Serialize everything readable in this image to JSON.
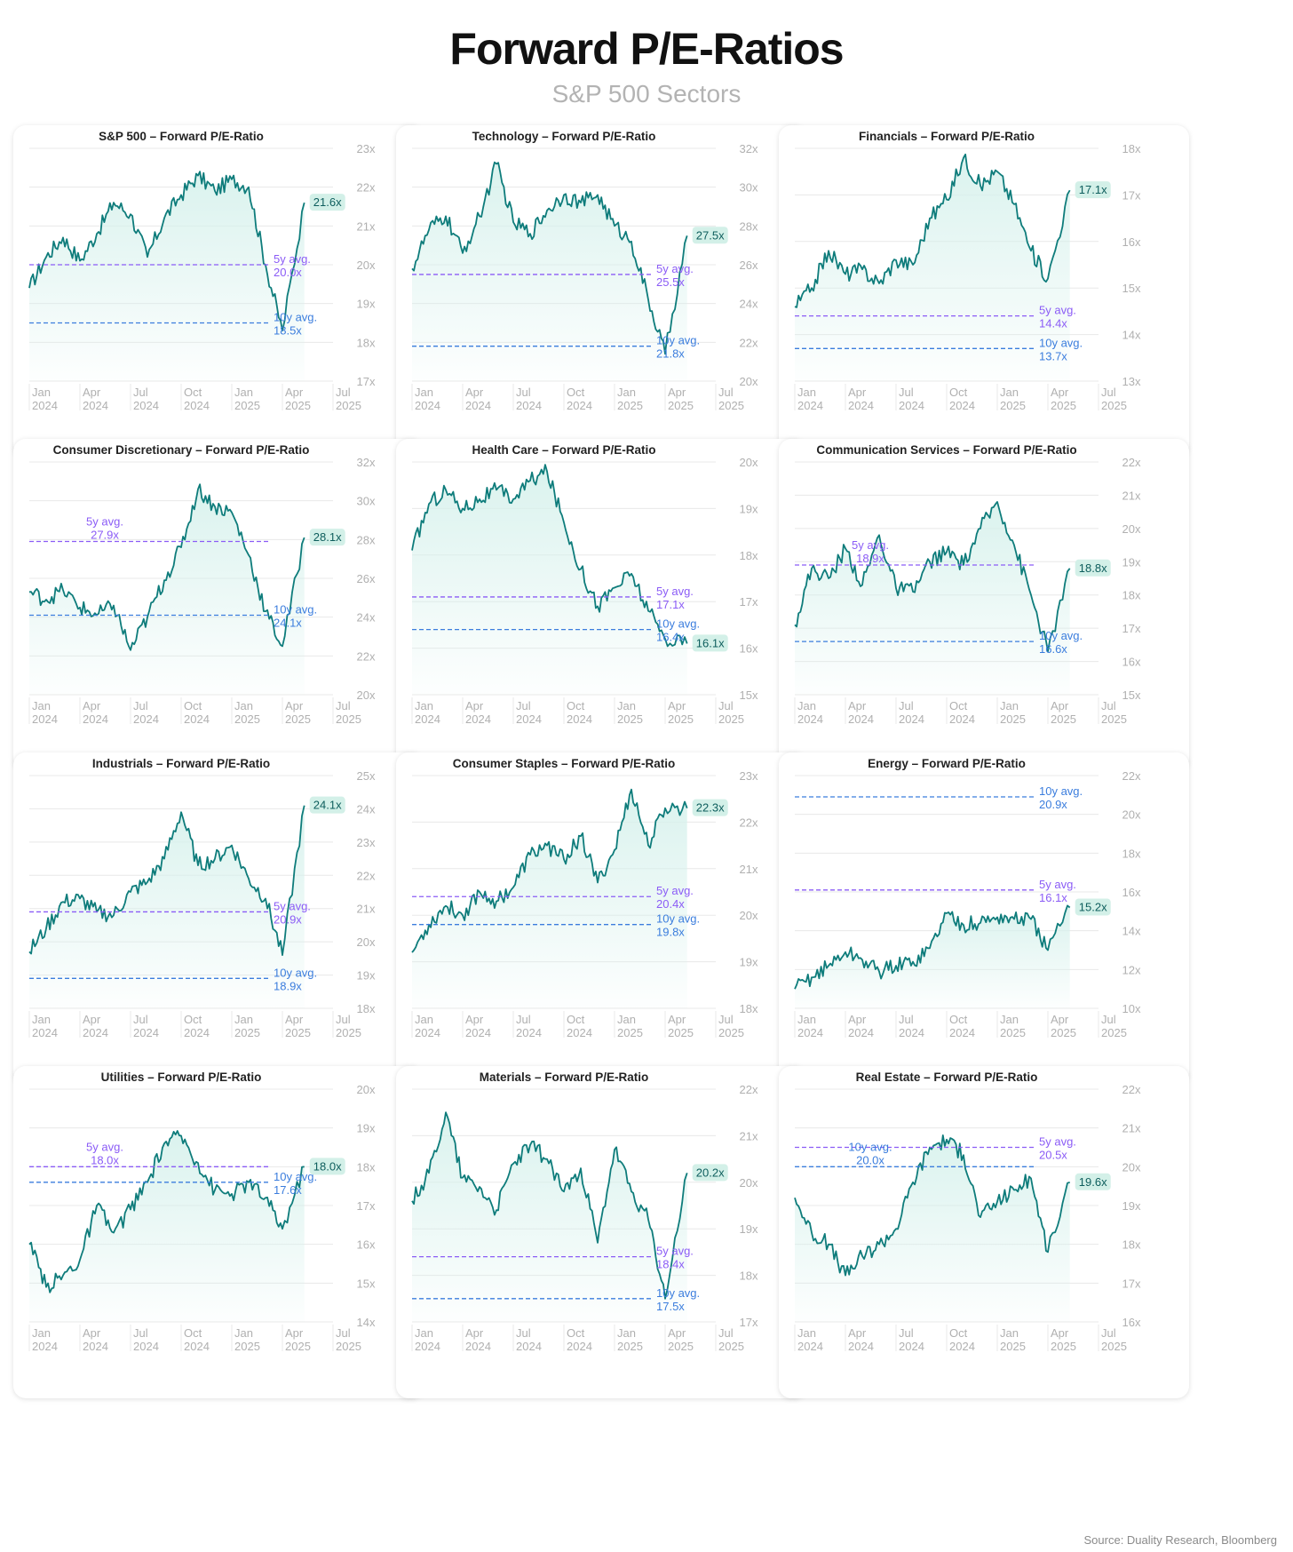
{
  "title": "Forward P/E-Ratios",
  "subtitle": "S&P 500 Sectors",
  "source": "Source: Duality Research, Bloomberg",
  "colors": {
    "line": "#0e7c7b",
    "fill": "#d6f1ec",
    "label_bg": "#d3f0e8",
    "avg5": "#8b5cf6",
    "avg10": "#3b7ddd",
    "grid": "#e8e8e8",
    "tick": "#b0b0b0"
  },
  "x_ticks": [
    [
      "Jan",
      "2024"
    ],
    [
      "Apr",
      "2024"
    ],
    [
      "Jul",
      "2024"
    ],
    [
      "Oct",
      "2024"
    ],
    [
      "Jan",
      "2025"
    ],
    [
      "Apr",
      "2025"
    ],
    [
      "Jul",
      "2025"
    ]
  ],
  "chart_data": [
    {
      "type": "line",
      "title": "S&P 500 – Forward P/E-Ratio",
      "y_ticks": [
        "23x",
        "22x",
        "21x",
        "20x",
        "19x",
        "18x",
        "17x"
      ],
      "ylim": [
        17,
        23
      ],
      "x": [
        "2024-01",
        "2024-02",
        "2024-03",
        "2024-04",
        "2024-05",
        "2024-06",
        "2024-07",
        "2024-08",
        "2024-09",
        "2024-10",
        "2024-11",
        "2024-12",
        "2025-01",
        "2025-02",
        "2025-03",
        "2025-04",
        "2025-05"
      ],
      "values": [
        19.4,
        20.2,
        20.7,
        20.1,
        20.8,
        21.6,
        21.3,
        20.2,
        21.2,
        21.8,
        22.3,
        21.9,
        22.2,
        22.0,
        20.0,
        18.3,
        21.6
      ],
      "current": "21.6x",
      "avg5": {
        "value": 20.0,
        "label": [
          "5y avg.",
          "20.0x"
        ],
        "label_pos": "right"
      },
      "avg10": {
        "value": 18.5,
        "label": [
          "10y avg.",
          "18.5x"
        ],
        "label_pos": "right"
      }
    },
    {
      "type": "line",
      "title": "Technology – Forward P/E-Ratio",
      "y_ticks": [
        "32x",
        "30x",
        "28x",
        "26x",
        "24x",
        "22x",
        "20x"
      ],
      "ylim": [
        20,
        32
      ],
      "x": [
        "2024-01",
        "2024-02",
        "2024-03",
        "2024-04",
        "2024-05",
        "2024-06",
        "2024-07",
        "2024-08",
        "2024-09",
        "2024-10",
        "2024-11",
        "2024-12",
        "2025-01",
        "2025-02",
        "2025-03",
        "2025-04",
        "2025-05"
      ],
      "values": [
        25.8,
        27.8,
        28.5,
        26.6,
        28.5,
        31.2,
        28.2,
        27.6,
        28.8,
        29.6,
        29.2,
        29.6,
        28.0,
        27.2,
        24.2,
        21.4,
        27.5
      ],
      "current": "27.5x",
      "avg5": {
        "value": 25.5,
        "label": [
          "5y avg.",
          "25.5x"
        ],
        "label_pos": "right"
      },
      "avg10": {
        "value": 21.8,
        "label": [
          "10y avg.",
          "21.8x"
        ],
        "label_pos": "right"
      }
    },
    {
      "type": "line",
      "title": "Financials – Forward P/E-Ratio",
      "y_ticks": [
        "18x",
        "17x",
        "16x",
        "15x",
        "14x",
        "13x"
      ],
      "ylim": [
        13,
        18
      ],
      "x": [
        "2024-01",
        "2024-02",
        "2024-03",
        "2024-04",
        "2024-05",
        "2024-06",
        "2024-07",
        "2024-08",
        "2024-09",
        "2024-10",
        "2024-11",
        "2024-12",
        "2025-01",
        "2025-02",
        "2025-03",
        "2025-04",
        "2025-05"
      ],
      "values": [
        14.6,
        15.0,
        15.8,
        15.3,
        15.4,
        15.1,
        15.6,
        15.5,
        16.5,
        16.9,
        17.8,
        17.2,
        17.5,
        16.8,
        15.8,
        15.2,
        17.1
      ],
      "current": "17.1x",
      "avg5": {
        "value": 14.4,
        "label": [
          "5y avg.",
          "14.4x"
        ],
        "label_pos": "right"
      },
      "avg10": {
        "value": 13.7,
        "label": [
          "10y avg.",
          "13.7x"
        ],
        "label_pos": "right"
      }
    },
    {
      "type": "line",
      "title": "Consumer Discretionary – Forward P/E-Ratio",
      "y_ticks": [
        "32x",
        "30x",
        "28x",
        "26x",
        "24x",
        "22x",
        "20x"
      ],
      "ylim": [
        20,
        32
      ],
      "x": [
        "2024-01",
        "2024-02",
        "2024-03",
        "2024-04",
        "2024-05",
        "2024-06",
        "2024-07",
        "2024-08",
        "2024-09",
        "2024-10",
        "2024-11",
        "2024-12",
        "2025-01",
        "2025-02",
        "2025-03",
        "2025-04",
        "2025-05"
      ],
      "values": [
        25.3,
        24.9,
        25.4,
        24.5,
        24.1,
        24.6,
        22.3,
        24.0,
        25.9,
        27.6,
        30.6,
        29.7,
        29.4,
        27.2,
        24.3,
        22.5,
        28.1
      ],
      "current": "28.1x",
      "avg5": {
        "value": 27.9,
        "label": [
          "5y avg.",
          "27.9x"
        ],
        "label_pos": "left"
      },
      "avg10": {
        "value": 24.1,
        "label": [
          "10y avg.",
          "24.1x"
        ],
        "label_pos": "right"
      }
    },
    {
      "type": "line",
      "title": "Health Care – Forward P/E-Ratio",
      "y_ticks": [
        "20x",
        "19x",
        "18x",
        "17x",
        "16x",
        "15x"
      ],
      "ylim": [
        15,
        20
      ],
      "x": [
        "2024-01",
        "2024-02",
        "2024-03",
        "2024-04",
        "2024-05",
        "2024-06",
        "2024-07",
        "2024-08",
        "2024-09",
        "2024-10",
        "2024-11",
        "2024-12",
        "2025-01",
        "2025-02",
        "2025-03",
        "2025-04",
        "2025-05"
      ],
      "values": [
        18.1,
        19.1,
        19.4,
        19.0,
        19.2,
        19.4,
        19.2,
        19.6,
        19.8,
        18.7,
        17.7,
        16.9,
        17.3,
        17.6,
        16.8,
        16.2,
        16.1
      ],
      "current": "16.1x",
      "avg5": {
        "value": 17.1,
        "label": [
          "5y avg.",
          "17.1x"
        ],
        "label_pos": "right"
      },
      "avg10": {
        "value": 16.4,
        "label": [
          "10y avg.",
          "16.4x"
        ],
        "label_pos": "right"
      }
    },
    {
      "type": "line",
      "title": "Communication Services – Forward P/E-Ratio",
      "y_ticks": [
        "22x",
        "21x",
        "20x",
        "19x",
        "18x",
        "17x",
        "16x",
        "15x"
      ],
      "ylim": [
        15,
        22
      ],
      "x": [
        "2024-01",
        "2024-02",
        "2024-03",
        "2024-04",
        "2024-05",
        "2024-06",
        "2024-07",
        "2024-08",
        "2024-09",
        "2024-10",
        "2024-11",
        "2024-12",
        "2025-01",
        "2025-02",
        "2025-03",
        "2025-04",
        "2025-05"
      ],
      "values": [
        17.1,
        18.8,
        18.5,
        19.4,
        18.3,
        19.8,
        18.2,
        18.1,
        19.0,
        19.3,
        18.9,
        20.0,
        20.8,
        19.5,
        18.0,
        16.3,
        18.8
      ],
      "current": "18.8x",
      "avg5": {
        "value": 18.9,
        "label": [
          "5y avg.",
          "18.9x"
        ],
        "label_pos": "left"
      },
      "avg10": {
        "value": 16.6,
        "label": [
          "10y avg.",
          "16.6x"
        ],
        "label_pos": "right"
      }
    },
    {
      "type": "line",
      "title": "Industrials – Forward P/E-Ratio",
      "y_ticks": [
        "25x",
        "24x",
        "23x",
        "22x",
        "21x",
        "20x",
        "19x",
        "18x"
      ],
      "ylim": [
        18,
        25
      ],
      "x": [
        "2024-01",
        "2024-02",
        "2024-03",
        "2024-04",
        "2024-05",
        "2024-06",
        "2024-07",
        "2024-08",
        "2024-09",
        "2024-10",
        "2024-11",
        "2024-12",
        "2025-01",
        "2025-02",
        "2025-03",
        "2025-04",
        "2025-05"
      ],
      "values": [
        19.7,
        20.4,
        21.2,
        21.3,
        20.9,
        20.8,
        21.5,
        21.8,
        22.5,
        23.9,
        22.3,
        22.5,
        22.9,
        21.9,
        21.3,
        19.6,
        24.1
      ],
      "current": "24.1x",
      "avg5": {
        "value": 20.9,
        "label": [
          "5y avg.",
          "20.9x"
        ],
        "label_pos": "right"
      },
      "avg10": {
        "value": 18.9,
        "label": [
          "10y avg.",
          "18.9x"
        ],
        "label_pos": "right"
      }
    },
    {
      "type": "line",
      "title": "Consumer Staples – Forward P/E-Ratio",
      "y_ticks": [
        "23x",
        "22x",
        "21x",
        "20x",
        "19x",
        "18x"
      ],
      "ylim": [
        18,
        23
      ],
      "x": [
        "2024-01",
        "2024-02",
        "2024-03",
        "2024-04",
        "2024-05",
        "2024-06",
        "2024-07",
        "2024-08",
        "2024-09",
        "2024-10",
        "2024-11",
        "2024-12",
        "2025-01",
        "2025-02",
        "2025-03",
        "2025-04",
        "2025-05"
      ],
      "values": [
        19.2,
        19.8,
        20.2,
        20.0,
        20.5,
        20.3,
        20.6,
        21.3,
        21.5,
        21.2,
        21.7,
        20.7,
        21.4,
        22.7,
        21.5,
        22.3,
        22.3
      ],
      "current": "22.3x",
      "avg5": {
        "value": 20.4,
        "label": [
          "5y avg.",
          "20.4x"
        ],
        "label_pos": "right"
      },
      "avg10": {
        "value": 19.8,
        "label": [
          "10y avg.",
          "19.8x"
        ],
        "label_pos": "right"
      }
    },
    {
      "type": "line",
      "title": "Energy – Forward P/E-Ratio",
      "y_ticks": [
        "22x",
        "20x",
        "18x",
        "16x",
        "14x",
        "12x",
        "10x"
      ],
      "ylim": [
        10,
        22
      ],
      "x": [
        "2024-01",
        "2024-02",
        "2024-03",
        "2024-04",
        "2024-05",
        "2024-06",
        "2024-07",
        "2024-08",
        "2024-09",
        "2024-10",
        "2024-11",
        "2024-12",
        "2025-01",
        "2025-02",
        "2025-03",
        "2025-04",
        "2025-05"
      ],
      "values": [
        11.0,
        11.6,
        12.2,
        12.9,
        12.5,
        11.9,
        12.2,
        12.4,
        13.1,
        14.9,
        14.3,
        14.4,
        14.7,
        14.6,
        14.6,
        13.0,
        15.2
      ],
      "current": "15.2x",
      "avg5": {
        "value": 16.1,
        "label": [
          "5y avg.",
          "16.1x"
        ],
        "label_pos": "right"
      },
      "avg10": {
        "value": 20.9,
        "label": [
          "10y avg.",
          "20.9x"
        ],
        "label_pos": "right"
      }
    },
    {
      "type": "line",
      "title": "Utilities – Forward P/E-Ratio",
      "y_ticks": [
        "20x",
        "19x",
        "18x",
        "17x",
        "16x",
        "15x",
        "14x"
      ],
      "ylim": [
        14,
        20
      ],
      "x": [
        "2024-01",
        "2024-02",
        "2024-03",
        "2024-04",
        "2024-05",
        "2024-06",
        "2024-07",
        "2024-08",
        "2024-09",
        "2024-10",
        "2024-11",
        "2024-12",
        "2025-01",
        "2025-02",
        "2025-03",
        "2025-04",
        "2025-05"
      ],
      "values": [
        16.0,
        14.9,
        15.2,
        15.6,
        17.0,
        16.3,
        16.9,
        17.6,
        18.6,
        18.8,
        18.1,
        17.4,
        17.3,
        17.6,
        17.2,
        16.4,
        18.0
      ],
      "current": "18.0x",
      "avg5": {
        "value": 18.0,
        "label": [
          "5y avg.",
          "18.0x"
        ],
        "label_pos": "left"
      },
      "avg10": {
        "value": 17.6,
        "label": [
          "10y avg.",
          "17.6x"
        ],
        "label_pos": "right"
      }
    },
    {
      "type": "line",
      "title": "Materials – Forward P/E-Ratio",
      "y_ticks": [
        "22x",
        "21x",
        "20x",
        "19x",
        "18x",
        "17x"
      ],
      "ylim": [
        17,
        22
      ],
      "x": [
        "2024-01",
        "2024-02",
        "2024-03",
        "2024-04",
        "2024-05",
        "2024-06",
        "2024-07",
        "2024-08",
        "2024-09",
        "2024-10",
        "2024-11",
        "2024-12",
        "2025-01",
        "2025-02",
        "2025-03",
        "2025-04",
        "2025-05"
      ],
      "values": [
        19.6,
        20.2,
        21.5,
        20.1,
        19.9,
        19.4,
        20.4,
        20.8,
        20.5,
        19.8,
        20.3,
        18.7,
        20.7,
        19.8,
        19.2,
        17.5,
        20.2
      ],
      "current": "20.2x",
      "avg5": {
        "value": 18.4,
        "label": [
          "5y avg.",
          "18.4x"
        ],
        "label_pos": "right"
      },
      "avg10": {
        "value": 17.5,
        "label": [
          "10y avg.",
          "17.5x"
        ],
        "label_pos": "right"
      }
    },
    {
      "type": "line",
      "title": "Real Estate – Forward P/E-Ratio",
      "y_ticks": [
        "22x",
        "21x",
        "20x",
        "19x",
        "18x",
        "17x",
        "16x"
      ],
      "ylim": [
        16,
        22
      ],
      "x": [
        "2024-01",
        "2024-02",
        "2024-03",
        "2024-04",
        "2024-05",
        "2024-06",
        "2024-07",
        "2024-08",
        "2024-09",
        "2024-10",
        "2024-11",
        "2024-12",
        "2025-01",
        "2025-02",
        "2025-03",
        "2025-04",
        "2025-05"
      ],
      "values": [
        19.2,
        18.3,
        18.0,
        17.2,
        17.7,
        18.0,
        18.4,
        19.6,
        20.5,
        20.7,
        20.3,
        18.7,
        19.1,
        19.4,
        19.7,
        17.8,
        19.6
      ],
      "current": "19.6x",
      "avg5": {
        "value": 20.5,
        "label": [
          "5y avg.",
          "20.5x"
        ],
        "label_pos": "right"
      },
      "avg10": {
        "value": 20.0,
        "label": [
          "10y avg.",
          "20.0x"
        ],
        "label_pos": "left"
      }
    }
  ]
}
